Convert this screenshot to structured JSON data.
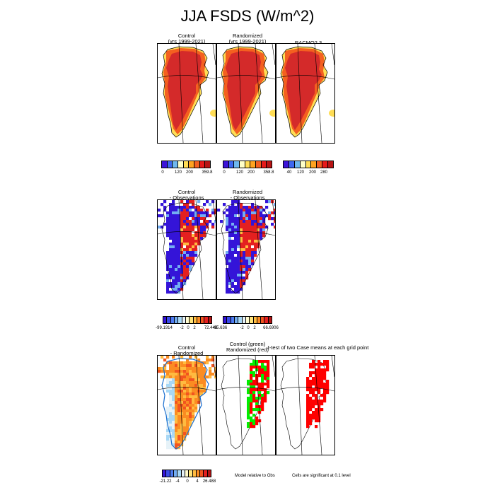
{
  "title": "JJA FSDS (W/m^2)",
  "colors": {
    "abs": [
      "#3c14d8",
      "#3e68f0",
      "#6fb8ee",
      "#ffffc8",
      "#ffdd55",
      "#ffa320",
      "#f46020",
      "#e61a1a",
      "#b81414"
    ],
    "diff": [
      "#3414d8",
      "#3a4ce8",
      "#4c7af0",
      "#74aef2",
      "#a8d8f6",
      "#e6f2f8",
      "#fffbd0",
      "#ffe47a",
      "#ffbb40",
      "#fb8c22",
      "#f25420",
      "#e42020",
      "#b41414"
    ],
    "sig_green": "#00ee00",
    "sig_red": "#ff0000"
  },
  "chart_data": [
    {
      "type": "heatmap",
      "panel": "control",
      "title": [
        "Control",
        "(yrs 1999-2021)"
      ],
      "colorbar_ticks": [
        "0",
        "120",
        "200",
        "359.8"
      ]
    },
    {
      "type": "heatmap",
      "panel": "randomized",
      "title": [
        "Randomized",
        "(yrs 1999-2021)"
      ],
      "colorbar_ticks": [
        "0",
        "120",
        "200",
        "358.8"
      ]
    },
    {
      "type": "heatmap",
      "panel": "racmo",
      "title": [
        "RACMO2.3"
      ],
      "colorbar_ticks": [
        "40",
        "120",
        "200",
        "280"
      ]
    },
    {
      "type": "heatmap",
      "panel": "control_minus_obs",
      "title": [
        "Control",
        "- Observations"
      ],
      "colorbar_ticks": [
        "-99.1914",
        "-2",
        "0",
        "2",
        "72.446"
      ]
    },
    {
      "type": "heatmap",
      "panel": "randomized_minus_obs",
      "title": [
        "Randomized",
        "- Observations"
      ],
      "colorbar_ticks": [
        "-95.636",
        "-2",
        "0",
        "2",
        "66.6906"
      ]
    },
    {
      "type": "heatmap",
      "panel": "control_minus_randomized",
      "title": [
        "Control",
        "- Randomized"
      ],
      "colorbar_ticks": [
        "-21.22",
        "-4",
        "0",
        "4",
        "26.488"
      ]
    },
    {
      "type": "heatmap",
      "panel": "control_green_randomized_red",
      "title": [
        "Control (green)",
        "Randomized (red)"
      ]
    },
    {
      "type": "heatmap",
      "panel": "significance",
      "title": [
        "t-test of two Case means at each grid point"
      ]
    }
  ],
  "notes": {
    "model_relative": "Model relative to Obs",
    "significance": "Cells are significant at 0.1 level"
  }
}
